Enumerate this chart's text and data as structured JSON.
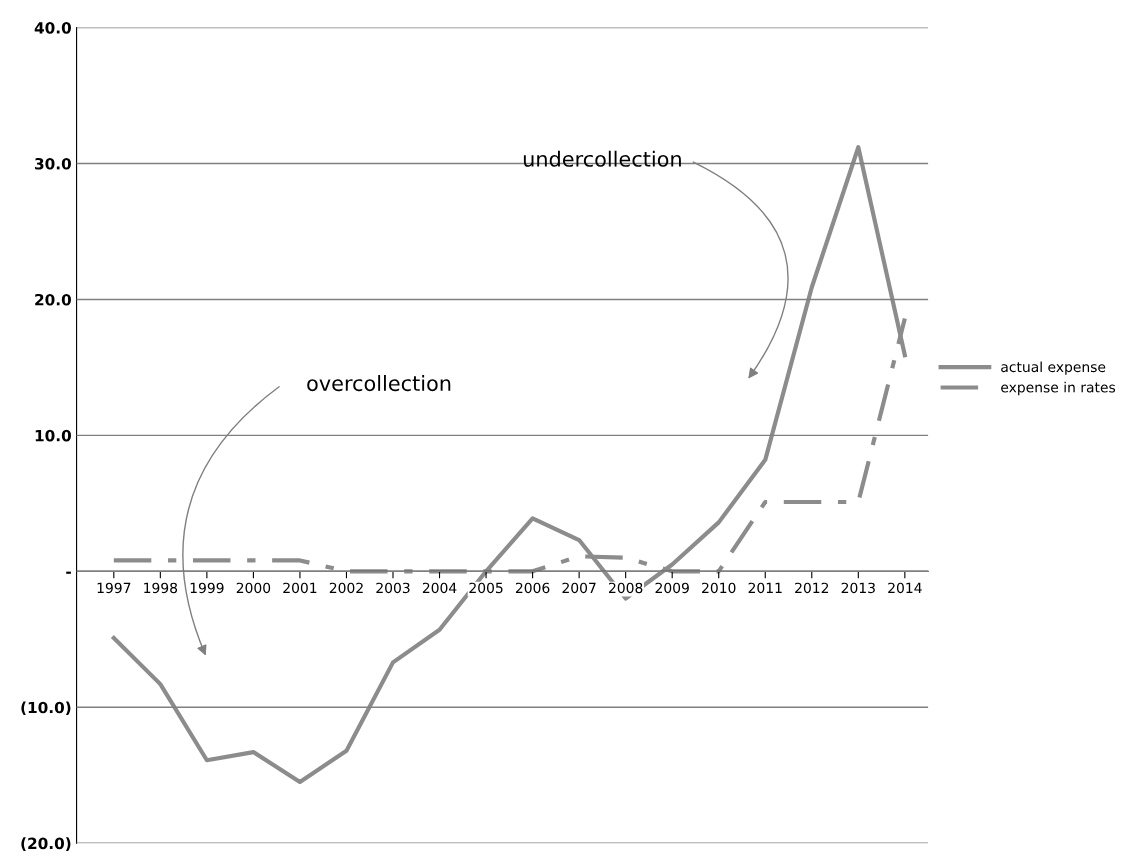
{
  "chart_data": {
    "type": "line",
    "categories": [
      "1997",
      "1998",
      "1999",
      "2000",
      "2001",
      "2002",
      "2003",
      "2004",
      "2005",
      "2006",
      "2007",
      "2008",
      "2009",
      "2010",
      "2011",
      "2012",
      "2013",
      "2014"
    ],
    "series": [
      {
        "name": "actual expense",
        "color": "#8c8c8c",
        "line_style": "solid",
        "values": [
          -4.9,
          -8.3,
          -13.9,
          -13.3,
          -15.5,
          -13.2,
          -6.7,
          -4.3,
          0.0,
          3.9,
          2.3,
          -2.0,
          0.5,
          3.6,
          8.2,
          20.9,
          31.2,
          15.9
        ]
      },
      {
        "name": "expense in rates",
        "color": "#8c8c8c",
        "line_style": "dashed",
        "values": [
          0.8,
          0.8,
          0.8,
          0.8,
          0.8,
          0.0,
          0.0,
          0.0,
          0.0,
          0.0,
          1.1,
          1.0,
          0.0,
          0.0,
          5.1,
          5.1,
          5.1,
          18.6
        ]
      }
    ],
    "ylim": [
      -20,
      40
    ],
    "yticks": [
      {
        "value": -20,
        "label": "(20.0)"
      },
      {
        "value": -10,
        "label": "(10.0)"
      },
      {
        "value": 0,
        "label": "-"
      },
      {
        "value": 10,
        "label": "10.0"
      },
      {
        "value": 20,
        "label": "20.0"
      },
      {
        "value": 30,
        "label": "30.0"
      },
      {
        "value": 40,
        "label": "40.0"
      }
    ],
    "grid": "y",
    "legend": "right",
    "marker": "none",
    "annotations": [
      "undercollection",
      "overcollection"
    ]
  }
}
